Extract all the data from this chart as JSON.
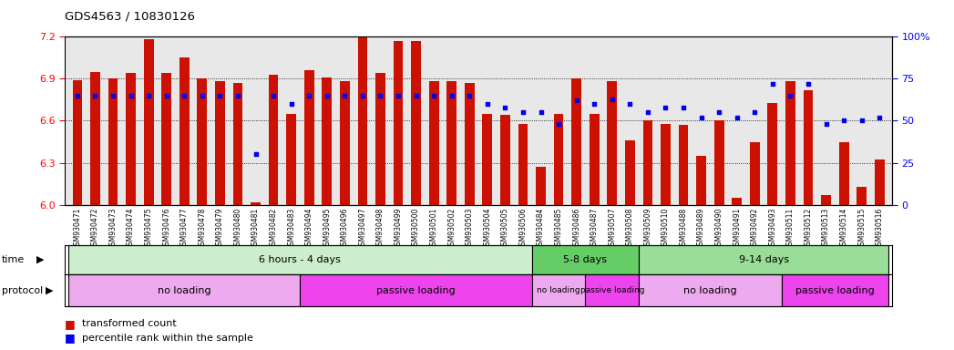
{
  "title": "GDS4563 / 10830126",
  "samples": [
    "GSM930471",
    "GSM930472",
    "GSM930473",
    "GSM930474",
    "GSM930475",
    "GSM930476",
    "GSM930477",
    "GSM930478",
    "GSM930479",
    "GSM930480",
    "GSM930481",
    "GSM930482",
    "GSM930483",
    "GSM930494",
    "GSM930495",
    "GSM930496",
    "GSM930497",
    "GSM930498",
    "GSM930499",
    "GSM930500",
    "GSM930501",
    "GSM930502",
    "GSM930503",
    "GSM930504",
    "GSM930505",
    "GSM930506",
    "GSM930484",
    "GSM930485",
    "GSM930486",
    "GSM930487",
    "GSM930507",
    "GSM930508",
    "GSM930509",
    "GSM930510",
    "GSM930488",
    "GSM930489",
    "GSM930490",
    "GSM930491",
    "GSM930492",
    "GSM930493",
    "GSM930511",
    "GSM930512",
    "GSM930513",
    "GSM930514",
    "GSM930515",
    "GSM930516"
  ],
  "bar_values": [
    6.89,
    6.95,
    6.9,
    6.94,
    7.18,
    6.94,
    7.05,
    6.9,
    6.88,
    6.87,
    6.02,
    6.93,
    6.65,
    6.96,
    6.91,
    6.88,
    7.2,
    6.94,
    7.17,
    7.17,
    6.88,
    6.88,
    6.87,
    6.65,
    6.64,
    6.58,
    6.27,
    6.65,
    6.9,
    6.65,
    6.88,
    6.46,
    6.6,
    6.58,
    6.57,
    6.35,
    6.6,
    6.05,
    6.45,
    6.73,
    6.88,
    6.82,
    6.07,
    6.45,
    6.13,
    6.32
  ],
  "percentile_values": [
    65,
    65,
    65,
    65,
    65,
    65,
    65,
    65,
    65,
    65,
    30,
    65,
    60,
    65,
    65,
    65,
    65,
    65,
    65,
    65,
    65,
    65,
    65,
    60,
    58,
    55,
    55,
    48,
    62,
    60,
    63,
    60,
    55,
    58,
    58,
    52,
    55,
    52,
    55,
    72,
    65,
    72,
    48,
    50,
    50,
    52
  ],
  "ylim": [
    6.0,
    7.2
  ],
  "ylim_right": [
    0,
    100
  ],
  "yticks_left": [
    6.0,
    6.3,
    6.6,
    6.9,
    7.2
  ],
  "yticks_right": [
    0,
    25,
    50,
    75,
    100
  ],
  "bar_color": "#cc1100",
  "dot_color": "#0000ee",
  "plot_bg": "#f0f0f0",
  "time_groups": [
    {
      "label": "6 hours - 4 days",
      "start": 0,
      "end": 25,
      "color": "#cceecc"
    },
    {
      "label": "5-8 days",
      "start": 26,
      "end": 31,
      "color": "#66cc66"
    },
    {
      "label": "9-14 days",
      "start": 32,
      "end": 45,
      "color": "#99dd99"
    }
  ],
  "protocol_groups": [
    {
      "label": "no loading",
      "start": 0,
      "end": 12,
      "color": "#eeaaee"
    },
    {
      "label": "passive loading",
      "start": 13,
      "end": 25,
      "color": "#ee44ee"
    },
    {
      "label": "no loading",
      "start": 26,
      "end": 28,
      "color": "#eeaaee"
    },
    {
      "label": "passive loading",
      "start": 29,
      "end": 31,
      "color": "#ee44ee"
    },
    {
      "label": "no loading",
      "start": 32,
      "end": 39,
      "color": "#eeaaee"
    },
    {
      "label": "passive loading",
      "start": 40,
      "end": 45,
      "color": "#ee44ee"
    }
  ],
  "legend_items": [
    {
      "label": "transformed count",
      "color": "#cc1100"
    },
    {
      "label": "percentile rank within the sample",
      "color": "#0000ee"
    }
  ]
}
